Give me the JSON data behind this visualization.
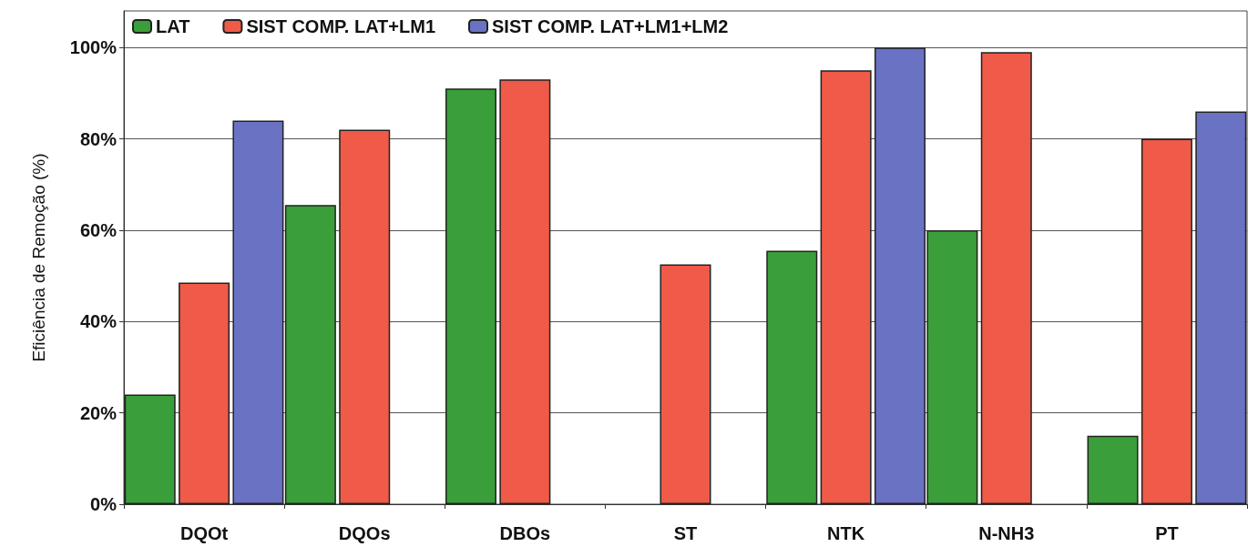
{
  "chart_data": {
    "type": "bar",
    "ylabel": "Eficiência de Remoção (%)",
    "categories": [
      "DQOt",
      "DQOs",
      "DBOs",
      "ST",
      "NTK",
      "N-NH3",
      "PT"
    ],
    "series": [
      {
        "name": "LAT",
        "color": "#3a9e3a",
        "values": [
          24,
          65.5,
          91,
          null,
          55.5,
          60,
          15
        ]
      },
      {
        "name": "SIST COMP. LAT+LM1",
        "color": "#f05a48",
        "values": [
          48.5,
          82,
          93,
          52.5,
          95,
          99,
          80
        ]
      },
      {
        "name": "SIST COMP. LAT+LM1+LM2",
        "color": "#6a72c4",
        "values": [
          84,
          null,
          null,
          null,
          100,
          null,
          86
        ]
      }
    ],
    "ylim": [
      0,
      108
    ],
    "yticks": [
      {
        "value": 0,
        "label": "0%"
      },
      {
        "value": 20,
        "label": "20%"
      },
      {
        "value": 40,
        "label": "40%"
      },
      {
        "value": 60,
        "label": "60%"
      },
      {
        "value": 80,
        "label": "80%"
      },
      {
        "value": 100,
        "label": "100%"
      }
    ],
    "grid": "y",
    "legend": "top left"
  }
}
